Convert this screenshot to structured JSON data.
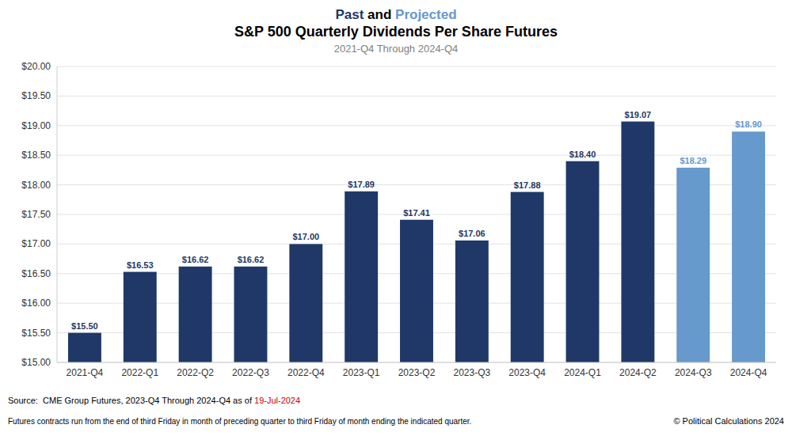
{
  "chart_data": {
    "type": "bar",
    "supertitle": [
      {
        "text": "Past",
        "color": "#1f3868"
      },
      {
        "text": " and ",
        "color": "#000000"
      },
      {
        "text": "Projected",
        "color": "#6699cc"
      }
    ],
    "title": "S&P 500 Quarterly Dividends Per Share Futures",
    "subtitle": "2021-Q4 Through 2024-Q4",
    "categories": [
      "2021-Q4",
      "2022-Q1",
      "2022-Q2",
      "2022-Q3",
      "2022-Q4",
      "2023-Q1",
      "2023-Q2",
      "2023-Q3",
      "2023-Q4",
      "2024-Q1",
      "2024-Q2",
      "2024-Q3",
      "2024-Q4"
    ],
    "values": [
      15.5,
      16.53,
      16.62,
      16.62,
      17.0,
      17.89,
      17.41,
      17.06,
      17.88,
      18.4,
      19.07,
      18.29,
      18.9
    ],
    "value_labels": [
      "$15.50",
      "$16.53",
      "$16.62",
      "$16.62",
      "$17.00",
      "$17.89",
      "$17.41",
      "$17.06",
      "$17.88",
      "$18.40",
      "$19.07",
      "$18.29",
      "$18.90"
    ],
    "colors": [
      "#1f3868",
      "#1f3868",
      "#1f3868",
      "#1f3868",
      "#1f3868",
      "#1f3868",
      "#1f3868",
      "#1f3868",
      "#1f3868",
      "#1f3868",
      "#1f3868",
      "#6699cc",
      "#6699cc"
    ],
    "data_labels": true,
    "ylim": [
      15.0,
      20.0
    ],
    "yticks": [
      {
        "value": 15.0,
        "label": "$15.00"
      },
      {
        "value": 15.5,
        "label": "$15.50"
      },
      {
        "value": 16.0,
        "label": "$16.00"
      },
      {
        "value": 16.5,
        "label": "$16.50"
      },
      {
        "value": 17.0,
        "label": "$17.00"
      },
      {
        "value": 17.5,
        "label": "$17.50"
      },
      {
        "value": 18.0,
        "label": "$18.00"
      },
      {
        "value": 18.5,
        "label": "$18.50"
      },
      {
        "value": 19.0,
        "label": "$19.00"
      },
      {
        "value": 19.5,
        "label": "$19.50"
      },
      {
        "value": 20.0,
        "label": "$20.00"
      }
    ],
    "grid": true,
    "source": {
      "text": "Source:  CME Group Futures, 2023-Q4 Through 2024-Q4 as of ",
      "date": "19-Jul-2024",
      "date_color": "#cc0000"
    },
    "footnote": "Futures contracts run from the end of third Friday in month of preceding quarter to third Friday of month ending the indicated quarter.",
    "copyright": "© Political Calculations 2024"
  }
}
